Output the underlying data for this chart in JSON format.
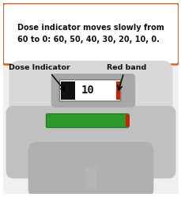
{
  "title_text": "Dose indicator moves slowly from\n60 to 0: 60, 50, 40, 30, 20, 10, 0.",
  "title_box_facecolor": "#ffffff",
  "title_border_color": "#e06020",
  "dose_number": "10",
  "red_band_color": "#cc2200",
  "green_bar_color": "#2a9a2a",
  "green_bar_red_tip": "#cc2200",
  "label_dose_indicator": "Dose Indicator",
  "label_red_band": "Red band",
  "outer_border_color": "#e06020",
  "outer_bg_color": "#f0f0f0",
  "inhaler_body_light": "#d8d8d8",
  "inhaler_body_mid": "#c0c0c0",
  "inhaler_body_dark": "#b0b0b0",
  "recess_color": "#a8a8a8",
  "window_white": "#ffffff",
  "window_black": "#111111",
  "figsize": [
    2.3,
    2.49
  ],
  "dpi": 100
}
